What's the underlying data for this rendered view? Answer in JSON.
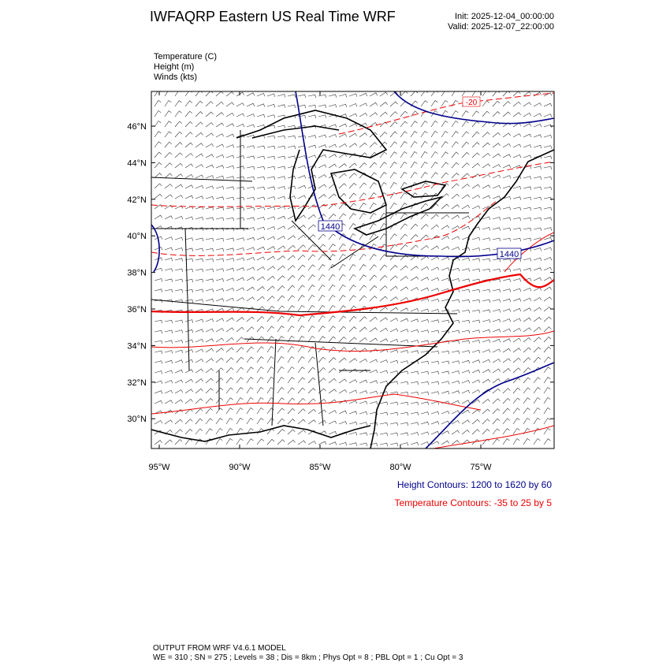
{
  "header": {
    "title": "IWFAQRP Eastern US Real Time WRF",
    "init": "Init: 2025-12-04_00:00:00",
    "valid": "Valid: 2025-12-07_22:00:00"
  },
  "fields": [
    "Temperature   (C)",
    "Height   (m)",
    "Winds   (kts)"
  ],
  "map": {
    "lat_labels": [
      "46°N",
      "44°N",
      "42°N",
      "40°N",
      "38°N",
      "36°N",
      "34°N",
      "32°N",
      "30°N"
    ],
    "lon_labels": [
      "95°W",
      "90°W",
      "85°W",
      "80°W",
      "75°W"
    ],
    "contour_labels": [
      "1440",
      "1440",
      "-20"
    ]
  },
  "notes": {
    "height": "Height Contours: 1200 to 1620 by 60",
    "temperature": "Temperature Contours: -35 to 25 by 5"
  },
  "footer": {
    "line1": "OUTPUT FROM WRF V4.6.1 MODEL",
    "line2": "WE = 310 ; SN = 275 ; Levels = 38 ; Dis = 8km ; Phys Opt = 8 ; PBL Opt = 1 ; Cu Opt = 3"
  }
}
